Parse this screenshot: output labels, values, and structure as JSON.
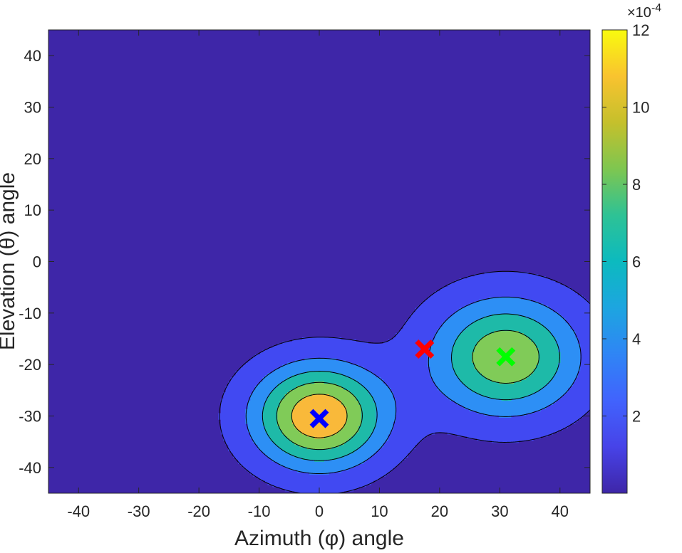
{
  "chart_data": {
    "type": "contour",
    "xlabel": "Azimuth (φ) angle",
    "ylabel": "Elevation (θ) angle",
    "xlim": [
      -45,
      45
    ],
    "ylim": [
      -45,
      45
    ],
    "xticks": [
      -40,
      -30,
      -20,
      -10,
      0,
      10,
      20,
      30,
      40
    ],
    "yticks": [
      40,
      30,
      20,
      10,
      0,
      -10,
      -20,
      -30,
      -40
    ],
    "xtick_labels": [
      "-40",
      "-30",
      "-20",
      "-10",
      "0",
      "10",
      "20",
      "30",
      "40"
    ],
    "ytick_labels": [
      "40",
      "30",
      "20",
      "10",
      "0",
      "-10",
      "-20",
      "-30",
      "-40"
    ],
    "colorbar": {
      "range": [
        0,
        12
      ],
      "ticks": [
        2,
        4,
        6,
        8,
        10,
        12
      ],
      "tick_labels": [
        "2",
        "4",
        "6",
        "8",
        "10",
        "12"
      ],
      "multiplier_label": "×10",
      "multiplier_exponent": "-4",
      "colormap": "parula"
    },
    "field": {
      "peaks": [
        {
          "x": 0,
          "y": -30,
          "amplitude": 10.8,
          "sigma_x": 7.6,
          "sigma_y": 7.0
        },
        {
          "x": 31,
          "y": -18.5,
          "amplitude": 8.6,
          "sigma_x": 8.6,
          "sigma_y": 8.0
        }
      ],
      "levels": [
        1.0,
        3.0,
        5.0,
        7.0,
        9.0
      ]
    },
    "markers": [
      {
        "name": "blue-x",
        "x": 0,
        "y": -30.5,
        "color": "#0000ff"
      },
      {
        "name": "green-x",
        "x": 31,
        "y": -18.5,
        "color": "#00ff00"
      },
      {
        "name": "red-x",
        "x": 17.5,
        "y": -17,
        "color": "#ff0000"
      }
    ],
    "colors": {
      "background_level": "#3e26a8",
      "levels": [
        "#4149f2",
        "#2d8ff5",
        "#1ebaa8",
        "#80cb58",
        "#f9b93a"
      ],
      "axis": "#262626"
    }
  }
}
